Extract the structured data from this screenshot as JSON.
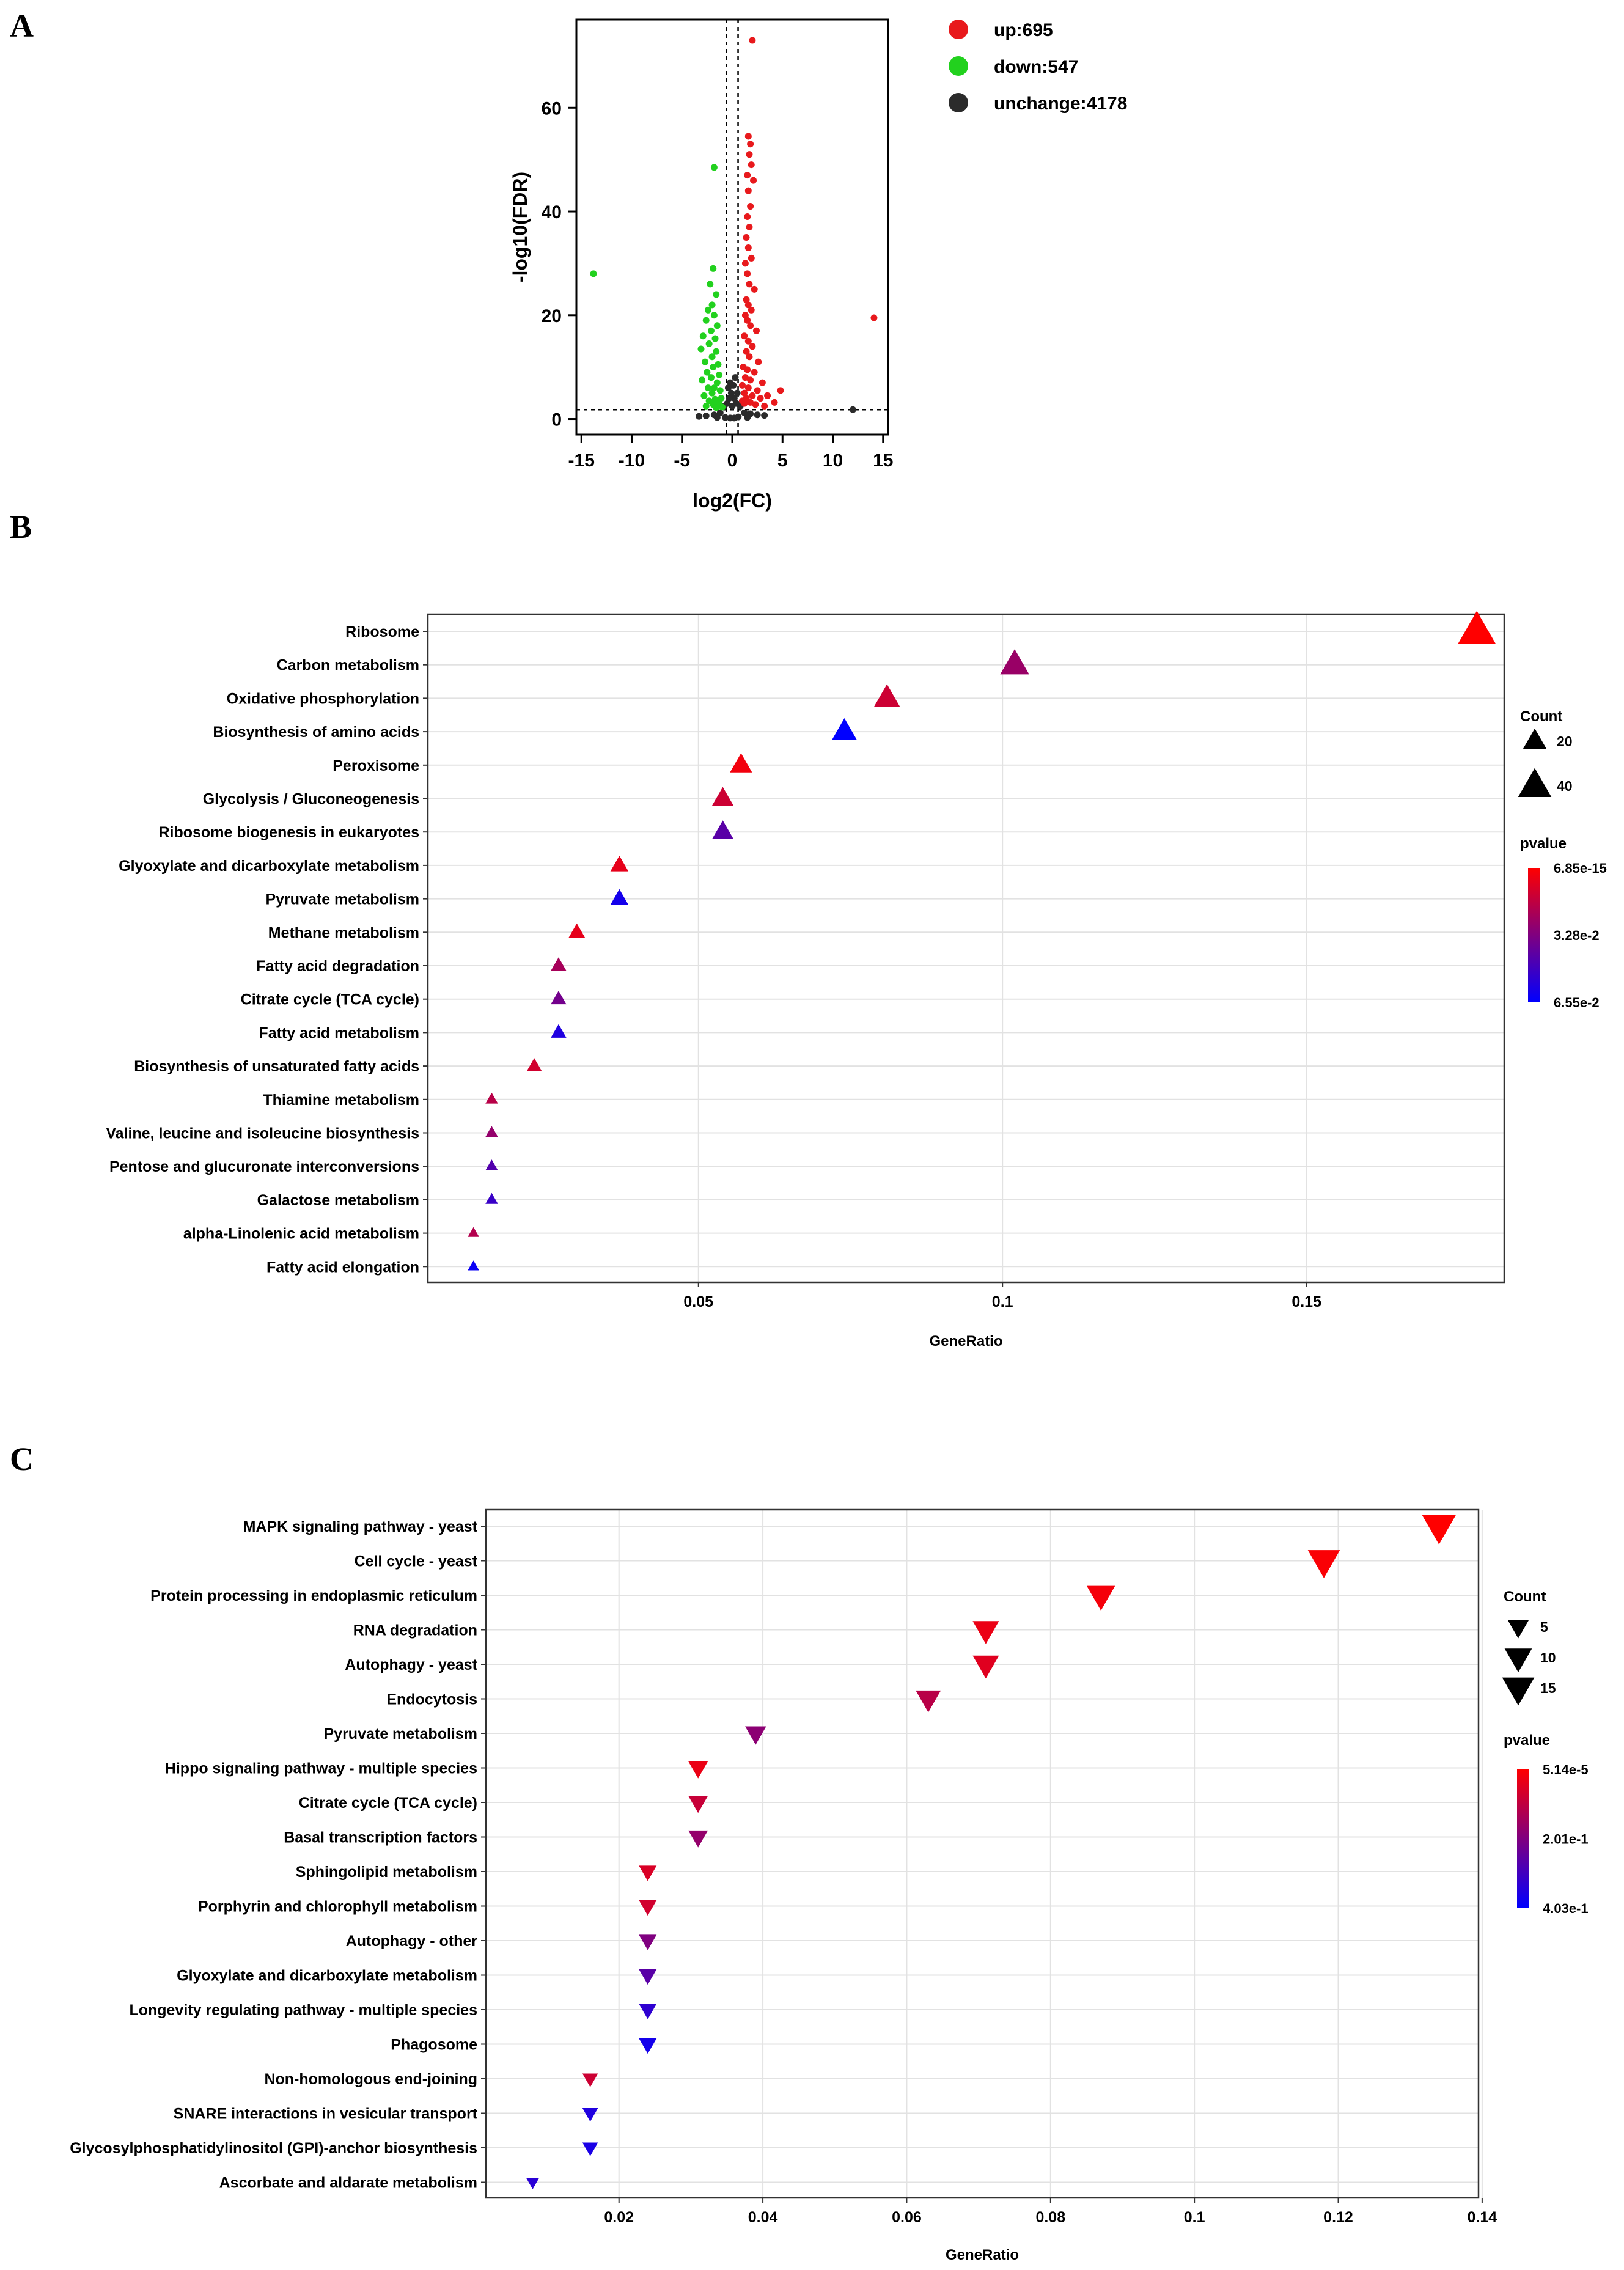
{
  "panels": {
    "a": "A",
    "b": "B",
    "c": "C"
  },
  "chart_data": [
    {
      "id": "A",
      "type": "scatter",
      "title": "",
      "xlabel": "log2(FC)",
      "ylabel": "-log10(FDR)",
      "xlim": [
        -15.5,
        15.5
      ],
      "ylim": [
        -3,
        77
      ],
      "xticks": [
        -15,
        -10,
        -5,
        0,
        5,
        10,
        15
      ],
      "xtick_labels": [
        "-15",
        "-10",
        "-5",
        "0",
        "5",
        "10",
        "15"
      ],
      "yticks": [
        0,
        20,
        40,
        60
      ],
      "ytick_labels": [
        "0",
        "20",
        "40",
        "60"
      ],
      "thresholds": {
        "x": [
          -0.58,
          0.58
        ],
        "y": 1.8
      },
      "colors": {
        "up": "#e8191c",
        "down": "#22d11e",
        "unchange": "#2b2b2b"
      },
      "legend": [
        {
          "key": "up",
          "label": "up:695"
        },
        {
          "key": "down",
          "label": "down:547"
        },
        {
          "key": "unchange",
          "label": "unchange:4178"
        }
      ],
      "series": [
        {
          "name": "up",
          "points": [
            [
              2.0,
              73
            ],
            [
              1.6,
              54.5
            ],
            [
              1.8,
              53
            ],
            [
              1.7,
              51
            ],
            [
              1.9,
              49
            ],
            [
              1.5,
              47
            ],
            [
              2.1,
              46
            ],
            [
              1.6,
              44
            ],
            [
              1.8,
              41
            ],
            [
              1.5,
              39
            ],
            [
              1.7,
              37
            ],
            [
              1.4,
              35
            ],
            [
              1.6,
              33
            ],
            [
              1.9,
              31
            ],
            [
              1.3,
              30
            ],
            [
              1.5,
              28
            ],
            [
              1.7,
              26
            ],
            [
              2.2,
              25
            ],
            [
              1.4,
              23
            ],
            [
              1.6,
              22
            ],
            [
              1.9,
              21
            ],
            [
              1.3,
              20
            ],
            [
              1.5,
              19
            ],
            [
              1.8,
              18
            ],
            [
              2.4,
              17
            ],
            [
              1.2,
              16
            ],
            [
              1.6,
              15
            ],
            [
              2.0,
              14
            ],
            [
              1.4,
              13
            ],
            [
              1.7,
              12
            ],
            [
              2.6,
              11
            ],
            [
              1.1,
              10
            ],
            [
              1.5,
              9.5
            ],
            [
              2.2,
              9
            ],
            [
              1.3,
              8
            ],
            [
              1.8,
              7.5
            ],
            [
              3.0,
              7
            ],
            [
              1.0,
              6.5
            ],
            [
              1.6,
              6
            ],
            [
              2.5,
              5.5
            ],
            [
              4.8,
              5.5
            ],
            [
              1.2,
              5
            ],
            [
              2.0,
              4.5
            ],
            [
              3.5,
              4.5
            ],
            [
              1.4,
              4
            ],
            [
              2.8,
              4
            ],
            [
              1.0,
              3.5
            ],
            [
              1.8,
              3.2
            ],
            [
              4.2,
              3.2
            ],
            [
              1.2,
              3
            ],
            [
              2.3,
              2.8
            ],
            [
              3.2,
              2.5
            ],
            [
              14.1,
              19.5
            ]
          ]
        },
        {
          "name": "down",
          "points": [
            [
              -1.8,
              48.5
            ],
            [
              -13.8,
              28
            ],
            [
              -1.9,
              29
            ],
            [
              -2.2,
              26
            ],
            [
              -1.6,
              24
            ],
            [
              -2.0,
              22
            ],
            [
              -2.4,
              21
            ],
            [
              -1.8,
              20
            ],
            [
              -2.6,
              19
            ],
            [
              -1.5,
              18
            ],
            [
              -2.1,
              17
            ],
            [
              -2.9,
              16
            ],
            [
              -1.7,
              15.5
            ],
            [
              -2.3,
              14.5
            ],
            [
              -3.1,
              13.5
            ],
            [
              -1.6,
              13
            ],
            [
              -2.0,
              12
            ],
            [
              -2.7,
              11
            ],
            [
              -1.4,
              10.5
            ],
            [
              -1.9,
              10
            ],
            [
              -2.5,
              9
            ],
            [
              -1.3,
              8.5
            ],
            [
              -2.1,
              8
            ],
            [
              -3.0,
              7.5
            ],
            [
              -1.5,
              7
            ],
            [
              -1.8,
              6
            ],
            [
              -2.4,
              6
            ],
            [
              -1.2,
              5.5
            ],
            [
              -2.0,
              5
            ],
            [
              -2.8,
              4.5
            ],
            [
              -1.1,
              4
            ],
            [
              -1.7,
              3.8
            ],
            [
              -2.3,
              3.5
            ],
            [
              -1.3,
              3
            ],
            [
              -1.9,
              2.8
            ],
            [
              -2.6,
              2.5
            ],
            [
              -1.0,
              2.3
            ],
            [
              -1.6,
              2.2
            ]
          ]
        },
        {
          "name": "unchange",
          "points": [
            [
              0.3,
              8
            ],
            [
              -0.2,
              7
            ],
            [
              0.1,
              6.5
            ],
            [
              -0.4,
              6
            ],
            [
              0.5,
              5
            ],
            [
              -0.1,
              5
            ],
            [
              0.2,
              4
            ],
            [
              -0.3,
              4
            ],
            [
              0.4,
              3
            ],
            [
              -0.5,
              3
            ],
            [
              0.0,
              2.5
            ],
            [
              0.8,
              2.5
            ],
            [
              -0.8,
              2.5
            ],
            [
              1.2,
              1.2
            ],
            [
              -1.2,
              1.2
            ],
            [
              1.8,
              1.0
            ],
            [
              -1.8,
              0.8
            ],
            [
              2.5,
              0.8
            ],
            [
              -2.6,
              0.6
            ],
            [
              3.2,
              0.7
            ],
            [
              -3.3,
              0.5
            ],
            [
              0.6,
              0.4
            ],
            [
              -0.7,
              0.3
            ],
            [
              1.5,
              0.3
            ],
            [
              -1.5,
              0.3
            ],
            [
              0.2,
              0.2
            ],
            [
              -0.2,
              0.2
            ],
            [
              12.0,
              1.8
            ]
          ]
        }
      ]
    },
    {
      "id": "B",
      "type": "scatter",
      "marker": "triangle-up",
      "title": "",
      "xlabel": "GeneRatio",
      "ylabel": "",
      "xlim": [
        0.0055,
        0.1825
      ],
      "xticks": [
        0.05,
        0.1,
        0.15
      ],
      "xtick_labels": [
        "0.05",
        "0.1",
        "0.15"
      ],
      "categories": [
        "Ribosome",
        "Carbon metabolism",
        "Oxidative phosphorylation",
        "Biosynthesis of amino acids",
        "Peroxisome",
        "Glycolysis / Gluconeogenesis",
        "Ribosome biogenesis in eukaryotes",
        "Glyoxylate and dicarboxylate metabolism",
        "Pyruvate metabolism",
        "Methane metabolism",
        "Fatty acid degradation",
        "Citrate cycle (TCA cycle)",
        "Fatty acid metabolism",
        "Biosynthesis of unsaturated fatty acids",
        "Thiamine metabolism",
        "Valine, leucine and isoleucine biosynthesis",
        "Pentose and glucuronate interconversions",
        "Galactose metabolism",
        "alpha-Linolenic acid metabolism",
        "Fatty acid elongation"
      ],
      "x": [
        0.178,
        0.102,
        0.081,
        0.074,
        0.057,
        0.054,
        0.054,
        0.037,
        0.037,
        0.03,
        0.027,
        0.027,
        0.027,
        0.023,
        0.016,
        0.016,
        0.016,
        0.016,
        0.013,
        0.013
      ],
      "count": [
        52,
        30,
        24,
        22,
        17,
        16,
        16,
        11,
        11,
        9,
        8,
        8,
        8,
        7,
        5,
        5,
        5,
        5,
        4,
        4
      ],
      "pvalue_scale": [
        0.0,
        0.4,
        0.2,
        1.0,
        0.05,
        0.2,
        0.65,
        0.1,
        0.92,
        0.1,
        0.35,
        0.55,
        0.88,
        0.18,
        0.28,
        0.42,
        0.68,
        0.78,
        0.3,
        0.96
      ],
      "legend": {
        "size_title": "Count",
        "size_entries": [
          {
            "label": "20",
            "value": 20
          },
          {
            "label": "40",
            "value": 40
          }
        ],
        "color_title": "pvalue",
        "color_labels": [
          "6.85e-15",
          "3.28e-2",
          "6.55e-2"
        ],
        "color_low": "#ff0000",
        "color_high": "#0000ff"
      }
    },
    {
      "id": "C",
      "type": "scatter",
      "marker": "triangle-down",
      "title": "",
      "xlabel": "GeneRatio",
      "ylabel": "",
      "xlim": [
        0.0015,
        0.1395
      ],
      "xticks": [
        0.02,
        0.04,
        0.06,
        0.08,
        0.1,
        0.12,
        0.14
      ],
      "xtick_labels": [
        "0.02",
        "0.04",
        "0.06",
        "0.08",
        "0.1",
        "0.12",
        "0.14"
      ],
      "categories": [
        "MAPK signaling pathway - yeast",
        "Cell cycle - yeast",
        "Protein processing in endoplasmic reticulum",
        "RNA degradation",
        "Autophagy - yeast",
        "Endocytosis",
        "Pyruvate metabolism",
        "Hippo signaling pathway - multiple species",
        "Citrate cycle (TCA cycle)",
        "Basal transcription factors",
        "Sphingolipid metabolism",
        "Porphyrin and chlorophyll metabolism",
        "Autophagy - other",
        "Glyoxylate and dicarboxylate metabolism",
        "Longevity regulating pathway - multiple species",
        "Phagosome",
        "Non-homologous end-joining",
        "SNARE interactions in vesicular transport",
        "Glycosylphosphatidylinositol (GPI)-anchor biosynthesis",
        "Ascorbate and aldarate metabolism"
      ],
      "x": [
        0.134,
        0.118,
        0.087,
        0.071,
        0.071,
        0.063,
        0.039,
        0.031,
        0.031,
        0.031,
        0.024,
        0.024,
        0.024,
        0.024,
        0.024,
        0.024,
        0.016,
        0.016,
        0.016,
        0.008
      ],
      "count": [
        17,
        15,
        11,
        9,
        9,
        8,
        5,
        4,
        4,
        4,
        3,
        3,
        3,
        3,
        3,
        3,
        2,
        2,
        2,
        1
      ],
      "pvalue_scale": [
        0.0,
        0.02,
        0.04,
        0.08,
        0.12,
        0.28,
        0.45,
        0.08,
        0.22,
        0.42,
        0.15,
        0.18,
        0.5,
        0.65,
        0.82,
        0.92,
        0.2,
        0.88,
        0.9,
        0.84
      ],
      "legend": {
        "size_title": "Count",
        "size_entries": [
          {
            "label": "5",
            "value": 5
          },
          {
            "label": "10",
            "value": 10
          },
          {
            "label": "15",
            "value": 15
          }
        ],
        "color_title": "pvalue",
        "color_labels": [
          "5.14e-5",
          "2.01e-1",
          "4.03e-1"
        ],
        "color_low": "#ff0000",
        "color_high": "#0000ff"
      }
    }
  ]
}
